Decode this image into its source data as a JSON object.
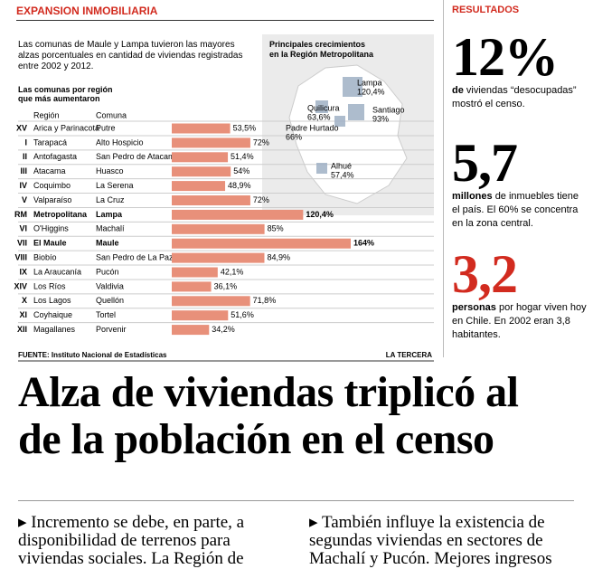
{
  "section": "EXPANSION INMOBILIARIA",
  "intro": "Las comunas de Maule y Lampa tuvieron las mayores alzas porcentuales en cantidad de viviendas registradas entre 2002 y 2012.",
  "chart_data": {
    "type": "bar",
    "title": "Las comunas por región que más aumentaron",
    "column_headers": [
      "Región",
      "Comuna"
    ],
    "region_codes": [
      "XV",
      "I",
      "II",
      "III",
      "IV",
      "V",
      "RM",
      "VI",
      "VII",
      "VIII",
      "IX",
      "XIV",
      "X",
      "XI",
      "XII"
    ],
    "regions": [
      "Arica y Parinacota",
      "Tarapacá",
      "Antofagasta",
      "Atacama",
      "Coquimbo",
      "Valparaíso",
      "Metropolitana",
      "O'Higgins",
      "El Maule",
      "Biobío",
      "La Araucanía",
      "Los Ríos",
      "Los Lagos",
      "Coyhaique",
      "Magallanes"
    ],
    "categories": [
      "Putre",
      "Alto Hospicio",
      "San Pedro de Atacama",
      "Huasco",
      "La Serena",
      "La Cruz",
      "Lampa",
      "Machalí",
      "Maule",
      "San Pedro de La Paz",
      "Pucón",
      "Valdivia",
      "Quellón",
      "Tortel",
      "Porvenir"
    ],
    "values": [
      53.5,
      72,
      51.4,
      54,
      48.9,
      72,
      120.4,
      85,
      164,
      84.9,
      42.1,
      36.1,
      71.8,
      51.6,
      34.2
    ],
    "value_labels": [
      "53,5%",
      "72%",
      "51,4%",
      "54%",
      "48,9%",
      "72%",
      "120,4%",
      "85%",
      "164%",
      "84,9%",
      "42,1%",
      "36,1%",
      "71,8%",
      "51,6%",
      "34,2%"
    ],
    "highlight": [
      false,
      false,
      false,
      false,
      false,
      false,
      true,
      false,
      true,
      false,
      false,
      false,
      false,
      false,
      false
    ],
    "color": "#e8907a"
  },
  "map": {
    "title": "Principales crecimientos en la Región Metropolitana",
    "points": [
      {
        "name": "Lampa",
        "label": "120,4%"
      },
      {
        "name": "Quilicura",
        "label": "63,6%"
      },
      {
        "name": "Santiago",
        "label": "93%"
      },
      {
        "name": "Padre Hurtado",
        "label": "66%"
      },
      {
        "name": "Alhué",
        "label": "57,4%"
      }
    ]
  },
  "source": "FUENTE: Instituto Nacional de Estadísticas",
  "credit": "LA TERCERA",
  "results": {
    "title": "RESULTADOS",
    "items": [
      {
        "figure": "12%",
        "lead": "de",
        "text": "viviendas “desocupadas” mostró el censo."
      },
      {
        "figure": "5,7",
        "lead": "millones",
        "text": "de inmuebles tiene el país. El 60% se concentra en la zona central."
      },
      {
        "figure": "3,2",
        "lead": "personas",
        "text": "por hogar viven hoy en Chile. En 2002 eran 3,8 habitantes."
      }
    ]
  },
  "headline": [
    "Alza de viviendas triplicó al",
    "de la población en el censo"
  ],
  "columns": [
    "Incremento se debe, en parte, a disponibilidad de terrenos para viviendas sociales. La Región de",
    "También influye la existencia de segundas viviendas en sectores de Machalí y Pucón. Mejores ingresos"
  ]
}
